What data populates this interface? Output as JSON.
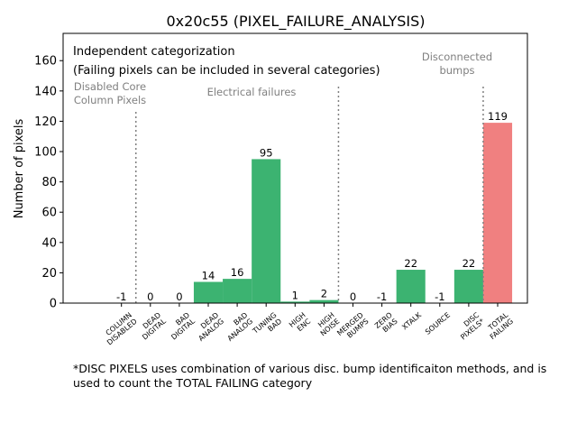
{
  "chart_data": {
    "type": "bar",
    "title": "0x20c55 (PIXEL_FAILURE_ANALYSIS)",
    "xlabel": "",
    "ylabel": "Number of pixels",
    "ylim": [
      0,
      178
    ],
    "yticks": [
      0,
      20,
      40,
      60,
      80,
      100,
      120,
      140,
      160
    ],
    "categories": [
      [
        "COLUMN",
        "DISABLED"
      ],
      [
        "DEAD",
        "DIGITAL"
      ],
      [
        "BAD",
        "DIGITAL"
      ],
      [
        "DEAD",
        "ANALOG"
      ],
      [
        "BAD",
        "ANALOG"
      ],
      [
        "TUNING",
        "BAD"
      ],
      [
        "HIGH",
        "ENC"
      ],
      [
        "HIGH",
        "NOISE"
      ],
      [
        "MERGED",
        "BUMPS"
      ],
      [
        "ZERO",
        "BIAS"
      ],
      [
        "XTALK"
      ],
      [
        "SOURCE"
      ],
      [
        "DISC",
        "PIXELS*"
      ],
      [
        "TOTAL",
        "FAILING"
      ]
    ],
    "values": [
      -1,
      0,
      0,
      14,
      16,
      95,
      1,
      2,
      0,
      -1,
      22,
      -1,
      22,
      119
    ],
    "bar_colors": [
      "#3cb371",
      "#3cb371",
      "#3cb371",
      "#3cb371",
      "#3cb371",
      "#3cb371",
      "#3cb371",
      "#3cb371",
      "#3cb371",
      "#3cb371",
      "#3cb371",
      "#3cb371",
      "#3cb371",
      "#f08080"
    ],
    "separators_after_index": [
      0,
      7,
      12
    ],
    "annotations": {
      "line1": "Independent categorization",
      "line2": "(Failing pixels can be included in several categories)",
      "core_lines": [
        "Disabled Core",
        "Column Pixels"
      ],
      "electrical": "Electrical failures",
      "bumps_lines": [
        "Disconnected",
        "bumps"
      ]
    },
    "footnote": "*DISC PIXELS uses combination of various disc. bump identificaiton methods, and is used to count the TOTAL FAILING category"
  }
}
